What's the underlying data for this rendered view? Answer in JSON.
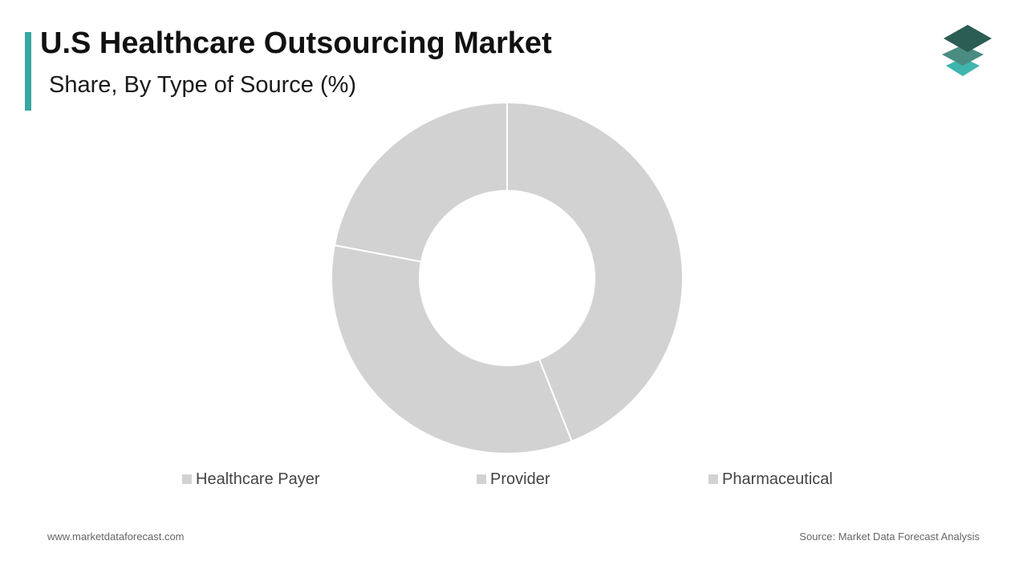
{
  "header": {
    "title": "U.S Healthcare Outsourcing Market",
    "subtitle": "Share, By Type of Source (%)",
    "accent_color": "#3aa6a0"
  },
  "logo": {
    "icon": "stacked-layers-logo-icon",
    "colors": [
      "#2c5d55",
      "#4a8c82",
      "#3fb5ad"
    ]
  },
  "chart_data": {
    "type": "pie",
    "variant": "donut",
    "title": "Share, By Type of Source (%)",
    "categories": [
      "Healthcare Payer",
      "Provider",
      "Pharmaceutical"
    ],
    "values": [
      44,
      34,
      22
    ],
    "unit": "%",
    "colors": [
      "#d3d2d3",
      "#d3d2d3",
      "#d3d2d3"
    ],
    "legend_position": "bottom"
  },
  "footer": {
    "website": "www.marketdataforecast.com",
    "source": "Source: Market Data Forecast Analysis"
  }
}
